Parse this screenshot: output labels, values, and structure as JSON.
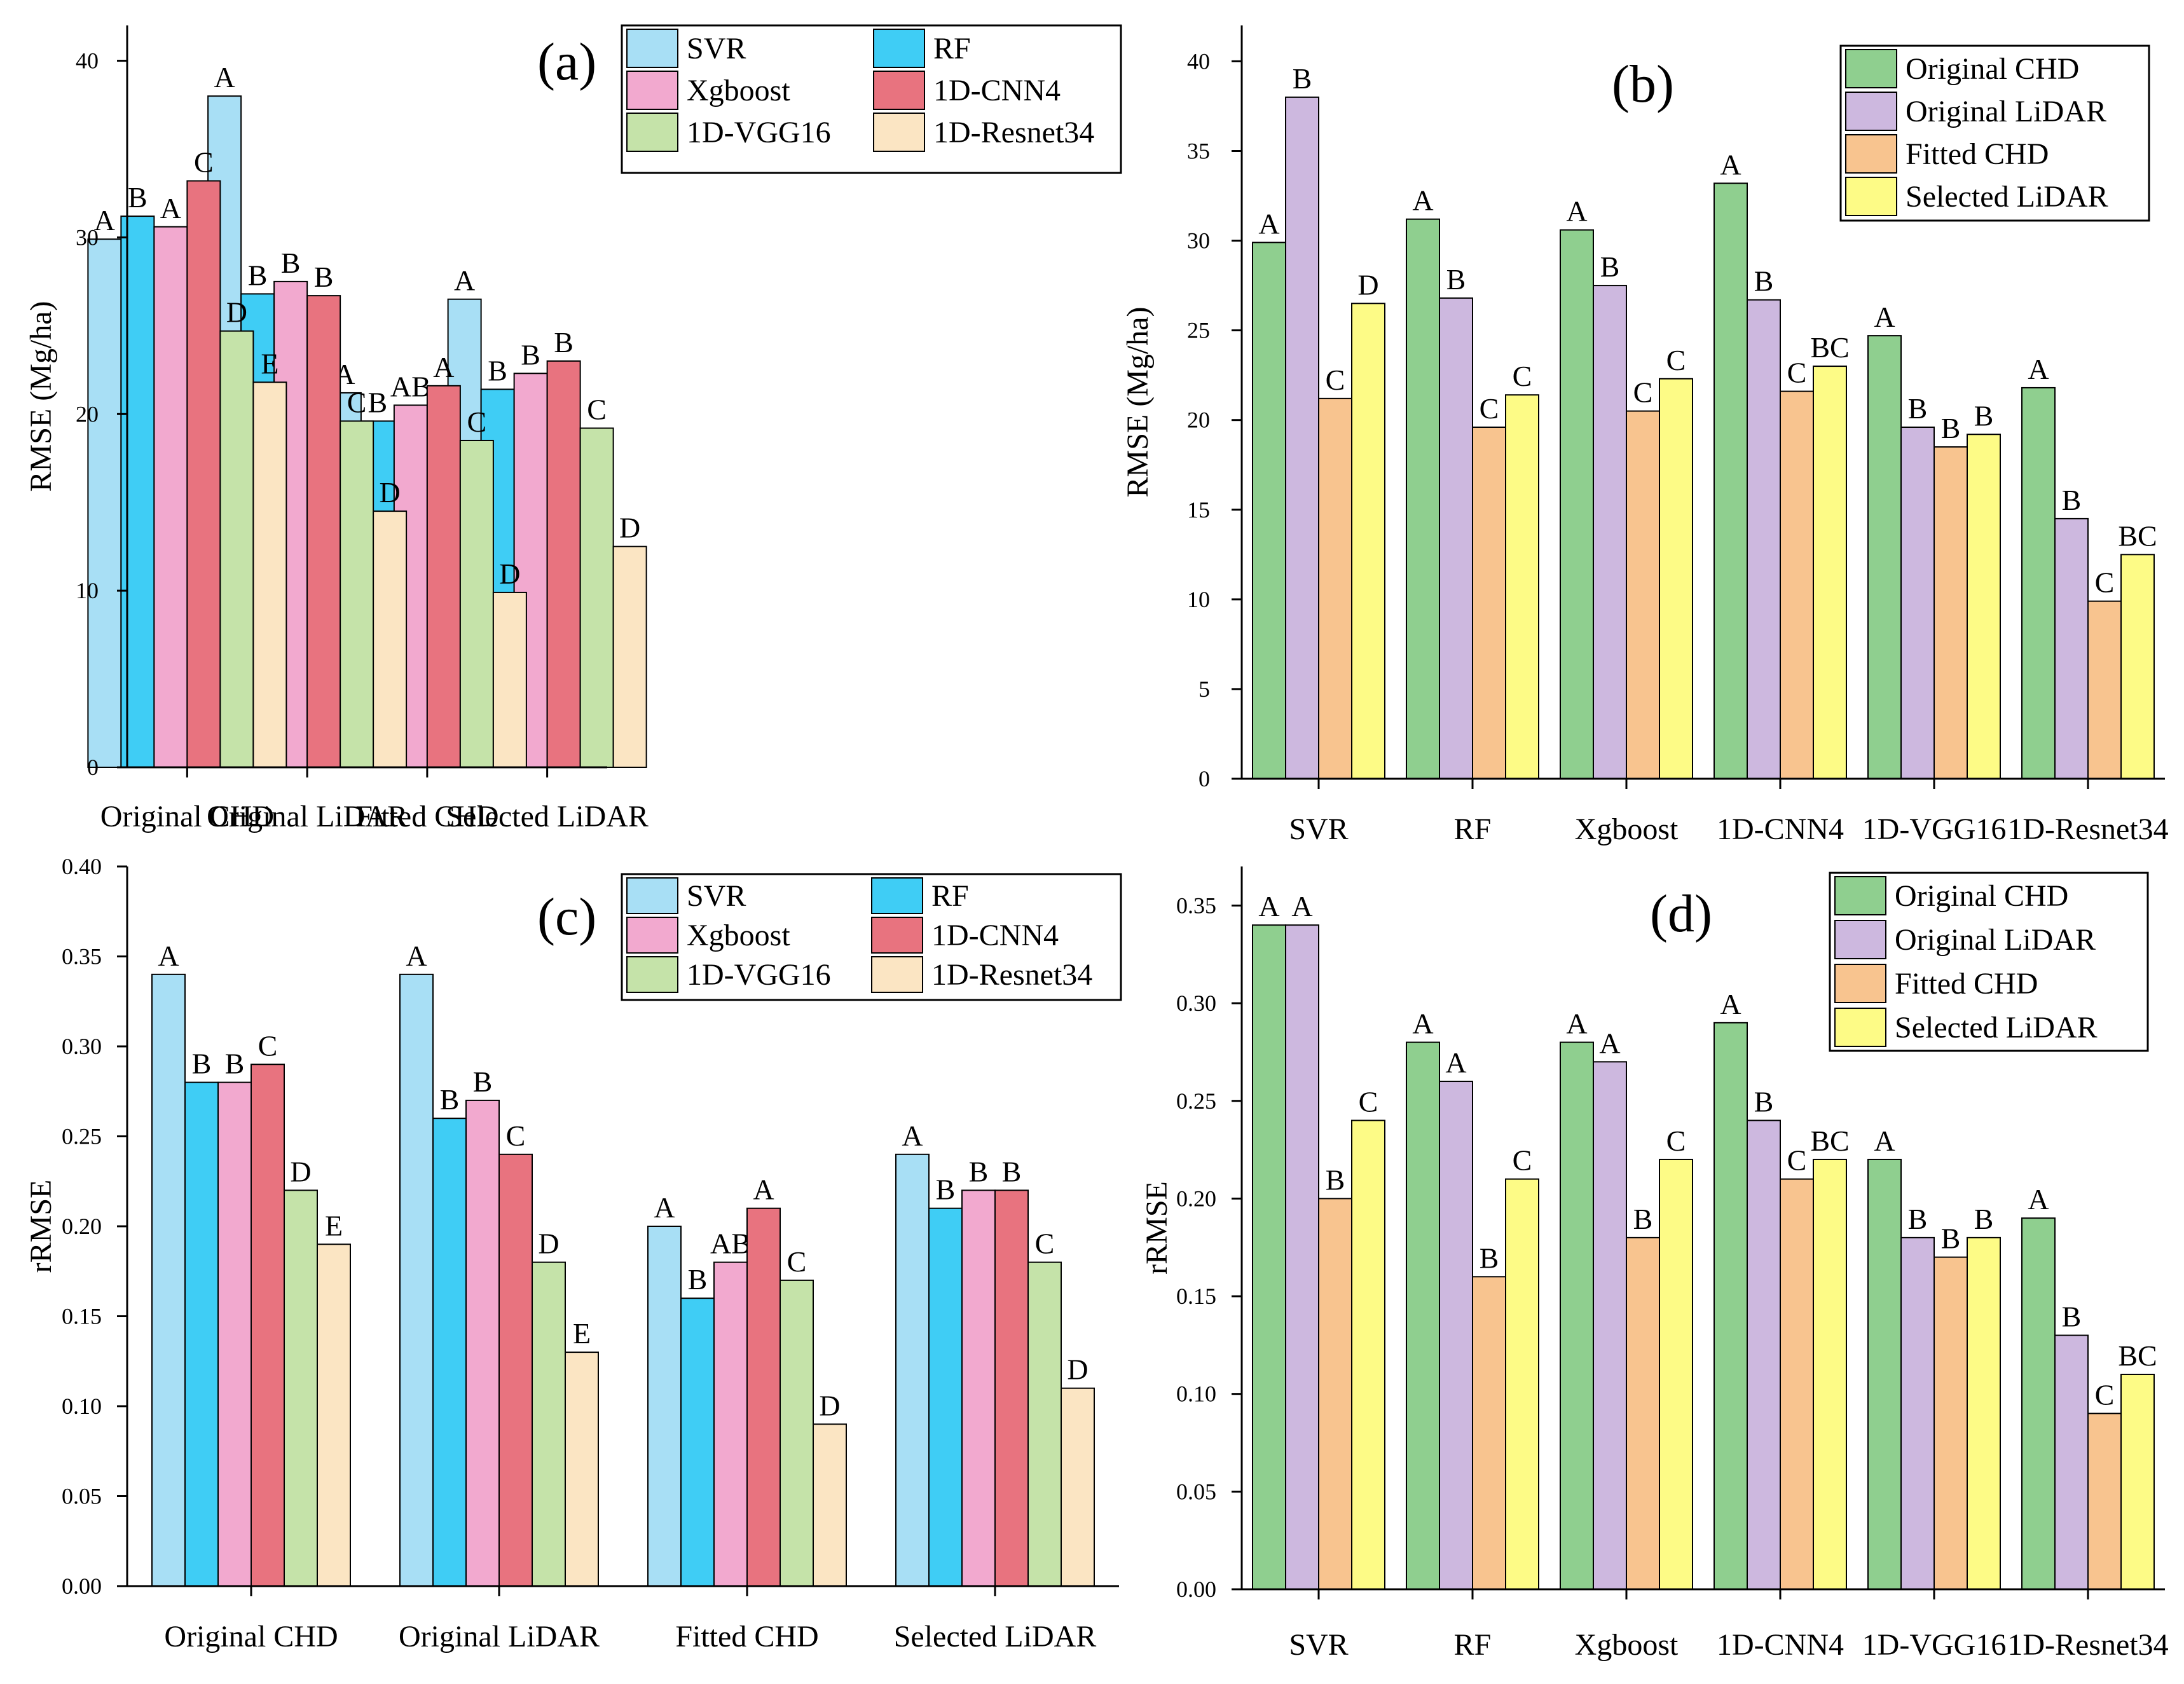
{
  "colors": {
    "SVR": "#a8dff5",
    "RF": "#3fcdf5",
    "Xgboost": "#f2a9cf",
    "1D-CNN4": "#e8737f",
    "1D-VGG16": "#c5e3a9",
    "1D-Resnet34": "#fbe5c3",
    "Original CHD": "#8fcf8f",
    "Original LiDAR": "#cdb8df",
    "Fitted CHD": "#f8c48f",
    "Selected LiDAR": "#fdfb86"
  },
  "chart_data": [
    {
      "id": "a",
      "type": "bar",
      "panel_label": "(a)",
      "title": "",
      "xlabel": "",
      "ylabel": "RMSE  (Mg/ha)",
      "ylim": [
        0,
        42
      ],
      "yticks": [
        "0",
        "10",
        "20",
        "30",
        "40"
      ],
      "ytick_values": [
        0,
        10,
        20,
        30,
        40
      ],
      "grid": false,
      "legend_position": "top-right",
      "categories": [
        "Original CHD",
        "Original LiDAR",
        "Fitted CHD",
        "Selected LiDAR"
      ],
      "series": [
        {
          "name": "SVR",
          "values": [
            29.9,
            38.0,
            21.2,
            26.5
          ],
          "letters": [
            "A",
            "A",
            "A",
            "A"
          ]
        },
        {
          "name": "RF",
          "values": [
            31.2,
            26.8,
            19.6,
            21.4
          ],
          "letters": [
            "B",
            "B",
            "B",
            "B"
          ]
        },
        {
          "name": "Xgboost",
          "values": [
            30.6,
            27.5,
            20.5,
            22.3
          ],
          "letters": [
            "A",
            "B",
            "AB",
            "B"
          ]
        },
        {
          "name": "1D-CNN4",
          "values": [
            33.2,
            26.7,
            21.6,
            23.0
          ],
          "letters": [
            "C",
            "B",
            "A",
            "B"
          ]
        },
        {
          "name": "1D-VGG16",
          "values": [
            24.7,
            19.6,
            18.5,
            19.2
          ],
          "letters": [
            "D",
            "C",
            "C",
            "C"
          ]
        },
        {
          "name": "1D-Resnet34",
          "values": [
            21.8,
            14.5,
            9.9,
            12.5
          ],
          "letters": [
            "E",
            "D",
            "D",
            "D"
          ]
        }
      ]
    },
    {
      "id": "b",
      "type": "bar",
      "panel_label": "(b)",
      "title": "",
      "xlabel": "",
      "ylabel": "RMSE  (Mg/ha)",
      "ylim": [
        0,
        42
      ],
      "yticks": [
        "0",
        "5",
        "10",
        "15",
        "20",
        "25",
        "30",
        "35",
        "40"
      ],
      "ytick_values": [
        0,
        5,
        10,
        15,
        20,
        25,
        30,
        35,
        40
      ],
      "grid": false,
      "legend_position": "top-right",
      "categories": [
        "SVR",
        "RF",
        "Xgboost",
        "1D-CNN4",
        "1D-VGG16",
        "1D-Resnet34"
      ],
      "series": [
        {
          "name": "Original CHD",
          "values": [
            29.9,
            31.2,
            30.6,
            33.2,
            24.7,
            21.8
          ],
          "letters": [
            "A",
            "A",
            "A",
            "A",
            "A",
            "A"
          ]
        },
        {
          "name": "Original LiDAR",
          "values": [
            38.0,
            26.8,
            27.5,
            26.7,
            19.6,
            14.5
          ],
          "letters": [
            "B",
            "B",
            "B",
            "B",
            "B",
            "B"
          ]
        },
        {
          "name": "Fitted CHD",
          "values": [
            21.2,
            19.6,
            20.5,
            21.6,
            18.5,
            9.9
          ],
          "letters": [
            "C",
            "C",
            "C",
            "C",
            "B",
            "C"
          ]
        },
        {
          "name": "Selected LiDAR",
          "values": [
            26.5,
            21.4,
            22.3,
            23.0,
            19.2,
            12.5
          ],
          "letters": [
            "D",
            "C",
            "C",
            "BC",
            "B",
            "BC"
          ]
        }
      ]
    },
    {
      "id": "c",
      "type": "bar",
      "panel_label": "(c)",
      "title": "",
      "xlabel": "",
      "ylabel": "rRMSE",
      "ylim": [
        0,
        0.4
      ],
      "yticks": [
        "0.00",
        "0.05",
        "0.10",
        "0.15",
        "0.20",
        "0.25",
        "0.30",
        "0.35",
        "0.40"
      ],
      "ytick_values": [
        0,
        0.05,
        0.1,
        0.15,
        0.2,
        0.25,
        0.3,
        0.35,
        0.4
      ],
      "grid": false,
      "legend_position": "top-right",
      "categories": [
        "Original CHD",
        "Original LiDAR",
        "Fitted CHD",
        "Selected LiDAR"
      ],
      "series": [
        {
          "name": "SVR",
          "values": [
            0.34,
            0.34,
            0.2,
            0.24
          ],
          "letters": [
            "A",
            "A",
            "A",
            "A"
          ]
        },
        {
          "name": "RF",
          "values": [
            0.28,
            0.26,
            0.16,
            0.21
          ],
          "letters": [
            "B",
            "B",
            "B",
            "B"
          ]
        },
        {
          "name": "Xgboost",
          "values": [
            0.28,
            0.27,
            0.18,
            0.22
          ],
          "letters": [
            "B",
            "B",
            "AB",
            "B"
          ]
        },
        {
          "name": "1D-CNN4",
          "values": [
            0.29,
            0.24,
            0.21,
            0.22
          ],
          "letters": [
            "C",
            "C",
            "A",
            "B"
          ]
        },
        {
          "name": "1D-VGG16",
          "values": [
            0.22,
            0.18,
            0.17,
            0.18
          ],
          "letters": [
            "D",
            "D",
            "C",
            "C"
          ]
        },
        {
          "name": "1D-Resnet34",
          "values": [
            0.19,
            0.13,
            0.09,
            0.11
          ],
          "letters": [
            "E",
            "E",
            "D",
            "D"
          ]
        }
      ]
    },
    {
      "id": "d",
      "type": "bar",
      "panel_label": "(d)",
      "title": "",
      "xlabel": "",
      "ylabel": "rRMSE",
      "ylim": [
        0,
        0.37
      ],
      "yticks": [
        "0.00",
        "0.05",
        "0.10",
        "0.15",
        "0.20",
        "0.25",
        "0.30",
        "0.35"
      ],
      "ytick_values": [
        0,
        0.05,
        0.1,
        0.15,
        0.2,
        0.25,
        0.3,
        0.35
      ],
      "grid": false,
      "legend_position": "top-right",
      "categories": [
        "SVR",
        "RF",
        "Xgboost",
        "1D-CNN4",
        "1D-VGG16",
        "1D-Resnet34"
      ],
      "series": [
        {
          "name": "Original CHD",
          "values": [
            0.34,
            0.28,
            0.28,
            0.29,
            0.22,
            0.19
          ],
          "letters": [
            "A",
            "A",
            "A",
            "A",
            "A",
            "A"
          ]
        },
        {
          "name": "Original LiDAR",
          "values": [
            0.34,
            0.26,
            0.27,
            0.24,
            0.18,
            0.13
          ],
          "letters": [
            "A",
            "A",
            "A",
            "B",
            "B",
            "B"
          ]
        },
        {
          "name": "Fitted CHD",
          "values": [
            0.2,
            0.16,
            0.18,
            0.21,
            0.17,
            0.09
          ],
          "letters": [
            "B",
            "B",
            "B",
            "C",
            "B",
            "C"
          ]
        },
        {
          "name": "Selected LiDAR",
          "values": [
            0.24,
            0.21,
            0.22,
            0.22,
            0.18,
            0.11
          ],
          "letters": [
            "C",
            "C",
            "C",
            "BC",
            "B",
            "BC"
          ]
        }
      ]
    }
  ]
}
